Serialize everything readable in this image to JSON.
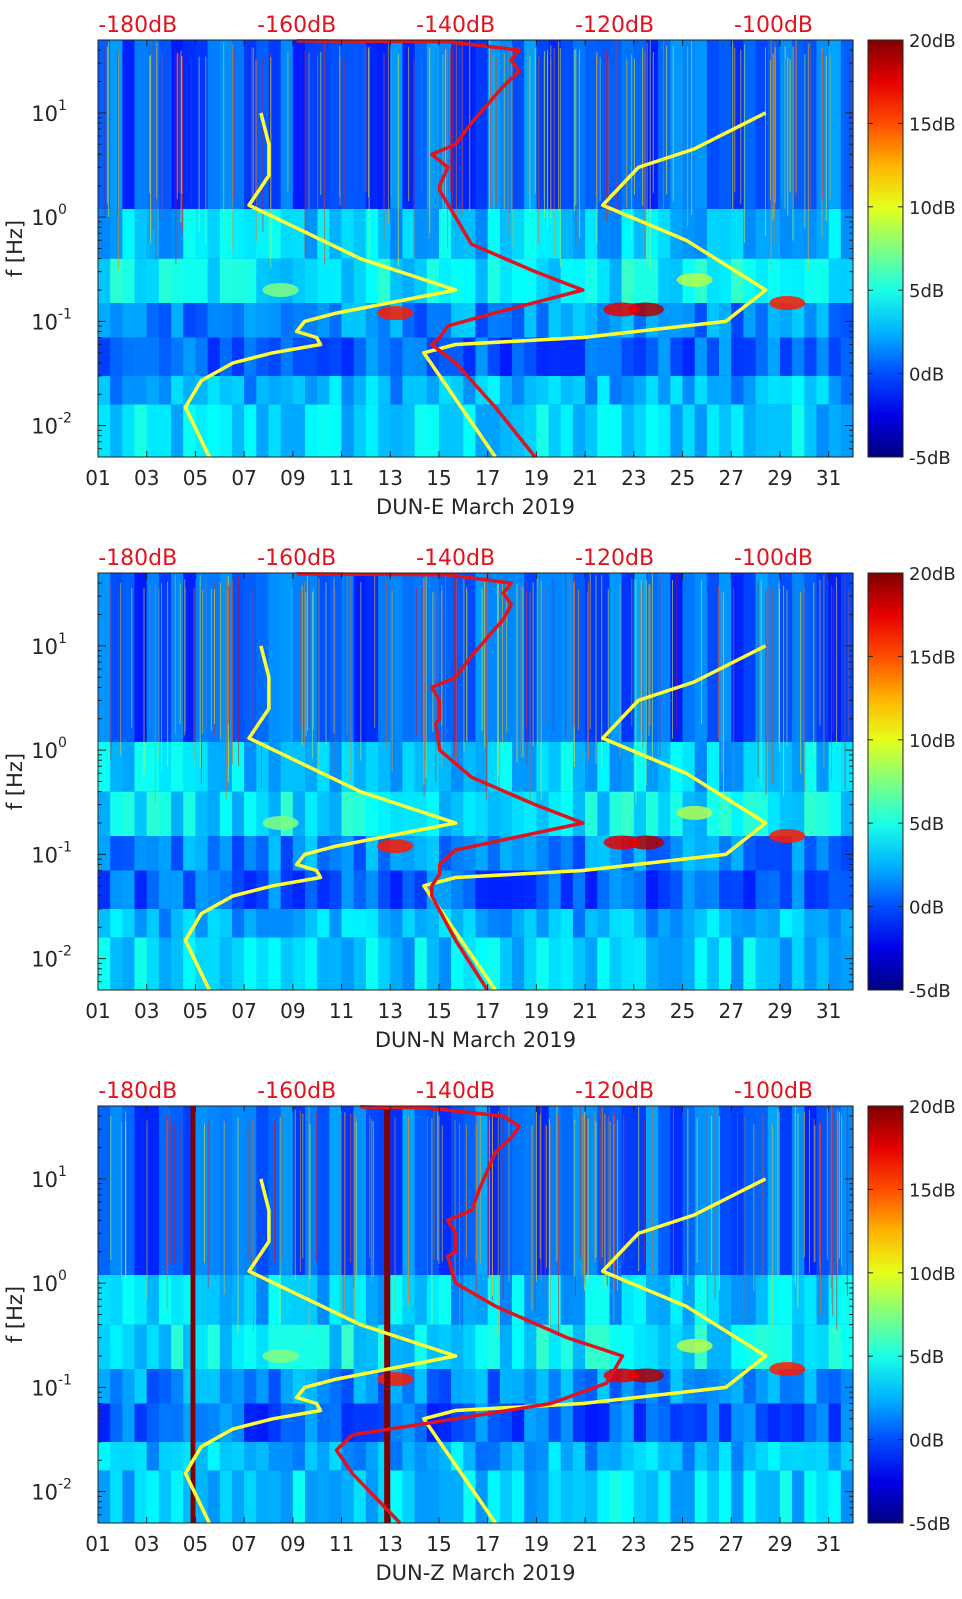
{
  "chart_data": [
    {
      "type": "heatmap",
      "title": "",
      "xlabel": "DUN-E March 2019",
      "ylabel": "f [Hz]",
      "x_ticks": [
        "01",
        "03",
        "05",
        "07",
        "09",
        "11",
        "13",
        "15",
        "17",
        "19",
        "21",
        "23",
        "25",
        "27",
        "29",
        "31"
      ],
      "y_ticks": [
        "10-2",
        "10-1",
        "10^0",
        "10^1"
      ],
      "y_scale": "log",
      "ylim": [
        0.005,
        50
      ],
      "xlim": [
        1,
        32
      ],
      "top_axis_ticks": [
        "-180dB",
        "-160dB",
        "-140dB",
        "-120dB",
        "-100dB"
      ],
      "top_axis_range_db": [
        -185,
        -90
      ],
      "colorbar": {
        "range": [
          -5,
          20
        ],
        "ticks": [
          "20dB",
          "15dB",
          "10dB",
          "5dB",
          "0dB",
          "-5dB"
        ]
      },
      "series": [
        {
          "color": "#ffff33",
          "points": [
            [
              -171,
              0.005
            ],
            [
              -174,
              0.015
            ],
            [
              -172,
              0.027
            ],
            [
              -168,
              0.04
            ],
            [
              -163,
              0.05
            ],
            [
              -157,
              0.06
            ],
            [
              -157.5,
              0.07
            ],
            [
              -160,
              0.08
            ],
            [
              -159,
              0.1
            ],
            [
              -155,
              0.12
            ],
            [
              -140,
              0.2
            ],
            [
              -152,
              0.4
            ],
            [
              -166,
              1.3
            ],
            [
              -163.5,
              2.5
            ],
            [
              -163.5,
              5
            ],
            [
              -164.5,
              10
            ]
          ]
        },
        {
          "color": "#ffff33",
          "points": [
            [
              -135,
              0.005
            ],
            [
              -144,
              0.05
            ],
            [
              -140,
              0.06
            ],
            [
              -124,
              0.07
            ],
            [
              -106,
              0.1
            ],
            [
              -101,
              0.2
            ],
            [
              -111,
              0.6
            ],
            [
              -121.5,
              1.3
            ],
            [
              -117,
              3
            ],
            [
              -110,
              4.5
            ],
            [
              -101,
              10
            ]
          ]
        },
        {
          "color": "#e0141e",
          "points": [
            [
              -130,
              0.005
            ],
            [
              -135,
              0.015
            ],
            [
              -140,
              0.04
            ],
            [
              -143,
              0.06
            ],
            [
              -142,
              0.07
            ],
            [
              -141,
              0.09
            ],
            [
              -137,
              0.11
            ],
            [
              -124,
              0.2
            ],
            [
              -130,
              0.3
            ],
            [
              -138,
              0.55
            ],
            [
              -140,
              1.0
            ],
            [
              -142,
              1.8
            ],
            [
              -142,
              2.0
            ],
            [
              -141,
              3.0
            ],
            [
              -143,
              4.0
            ],
            [
              -140,
              5.0
            ],
            [
              -138,
              8.0
            ],
            [
              -136,
              12.0
            ],
            [
              -134,
              18.0
            ],
            [
              -132,
              25.0
            ],
            [
              -133,
              32.0
            ],
            [
              -132,
              40.0
            ],
            [
              -141,
              48.0
            ],
            [
              -160,
              49.0
            ]
          ]
        }
      ],
      "vertical_bands": []
    },
    {
      "type": "heatmap",
      "title": "",
      "xlabel": "DUN-N March 2019",
      "ylabel": "f [Hz]",
      "x_ticks": [
        "01",
        "03",
        "05",
        "07",
        "09",
        "11",
        "13",
        "15",
        "17",
        "19",
        "21",
        "23",
        "25",
        "27",
        "29",
        "31"
      ],
      "y_ticks": [
        "10-2",
        "10-1",
        "10^0",
        "10^1"
      ],
      "y_scale": "log",
      "ylim": [
        0.005,
        50
      ],
      "xlim": [
        1,
        32
      ],
      "top_axis_ticks": [
        "-180dB",
        "-160dB",
        "-140dB",
        "-120dB",
        "-100dB"
      ],
      "top_axis_range_db": [
        -185,
        -90
      ],
      "colorbar": {
        "range": [
          -5,
          20
        ],
        "ticks": [
          "20dB",
          "15dB",
          "10dB",
          "5dB",
          "0dB",
          "-5dB"
        ]
      },
      "series": [
        {
          "color": "#ffff33",
          "points": [
            [
              -171,
              0.005
            ],
            [
              -174,
              0.015
            ],
            [
              -172,
              0.027
            ],
            [
              -168,
              0.04
            ],
            [
              -163,
              0.05
            ],
            [
              -157,
              0.06
            ],
            [
              -157.5,
              0.07
            ],
            [
              -160,
              0.08
            ],
            [
              -159,
              0.1
            ],
            [
              -155,
              0.12
            ],
            [
              -140,
              0.2
            ],
            [
              -152,
              0.4
            ],
            [
              -166,
              1.3
            ],
            [
              -163.5,
              2.5
            ],
            [
              -163.5,
              5
            ],
            [
              -164.5,
              10
            ]
          ]
        },
        {
          "color": "#ffff33",
          "points": [
            [
              -135,
              0.005
            ],
            [
              -144,
              0.05
            ],
            [
              -140,
              0.06
            ],
            [
              -124,
              0.07
            ],
            [
              -106,
              0.1
            ],
            [
              -101,
              0.2
            ],
            [
              -111,
              0.6
            ],
            [
              -121.5,
              1.3
            ],
            [
              -117,
              3
            ],
            [
              -110,
              4.5
            ],
            [
              -101,
              10
            ]
          ]
        },
        {
          "color": "#e0141e",
          "points": [
            [
              -136,
              0.005
            ],
            [
              -140,
              0.015
            ],
            [
              -143,
              0.04
            ],
            [
              -143,
              0.05
            ],
            [
              -142,
              0.065
            ],
            [
              -142,
              0.08
            ],
            [
              -140,
              0.11
            ],
            [
              -124,
              0.2
            ],
            [
              -130,
              0.3
            ],
            [
              -138,
              0.55
            ],
            [
              -142,
              1.0
            ],
            [
              -142.5,
              1.8
            ],
            [
              -142,
              2.0
            ],
            [
              -142,
              3.0
            ],
            [
              -143,
              4.0
            ],
            [
              -140,
              5.0
            ],
            [
              -138,
              8.0
            ],
            [
              -136,
              12.0
            ],
            [
              -134,
              18.0
            ],
            [
              -133,
              25.0
            ],
            [
              -134,
              32.0
            ],
            [
              -133,
              40.0
            ],
            [
              -141,
              48.0
            ],
            [
              -160,
              49.0
            ]
          ]
        }
      ],
      "vertical_bands": []
    },
    {
      "type": "heatmap",
      "title": "",
      "xlabel": "DUN-Z March 2019",
      "ylabel": "f [Hz]",
      "x_ticks": [
        "01",
        "03",
        "05",
        "07",
        "09",
        "11",
        "13",
        "15",
        "17",
        "19",
        "21",
        "23",
        "25",
        "27",
        "29",
        "31"
      ],
      "y_ticks": [
        "10-2",
        "10-1",
        "10^0",
        "10^1"
      ],
      "y_scale": "log",
      "ylim": [
        0.005,
        50
      ],
      "xlim": [
        1,
        32
      ],
      "top_axis_ticks": [
        "-180dB",
        "-160dB",
        "-140dB",
        "-120dB",
        "-100dB"
      ],
      "top_axis_range_db": [
        -185,
        -90
      ],
      "colorbar": {
        "range": [
          -5,
          20
        ],
        "ticks": [
          "20dB",
          "15dB",
          "10dB",
          "5dB",
          "0dB",
          "-5dB"
        ]
      },
      "series": [
        {
          "color": "#ffff33",
          "points": [
            [
              -171,
              0.005
            ],
            [
              -174,
              0.015
            ],
            [
              -172,
              0.027
            ],
            [
              -168,
              0.04
            ],
            [
              -163,
              0.05
            ],
            [
              -157,
              0.06
            ],
            [
              -157.5,
              0.07
            ],
            [
              -160,
              0.08
            ],
            [
              -159,
              0.1
            ],
            [
              -155,
              0.12
            ],
            [
              -140,
              0.2
            ],
            [
              -152,
              0.4
            ],
            [
              -166,
              1.3
            ],
            [
              -163.5,
              2.5
            ],
            [
              -163.5,
              5
            ],
            [
              -164.5,
              10
            ]
          ]
        },
        {
          "color": "#ffff33",
          "points": [
            [
              -135,
              0.005
            ],
            [
              -144,
              0.05
            ],
            [
              -140,
              0.06
            ],
            [
              -124,
              0.07
            ],
            [
              -106,
              0.1
            ],
            [
              -101,
              0.2
            ],
            [
              -111,
              0.6
            ],
            [
              -121.5,
              1.3
            ],
            [
              -117,
              3
            ],
            [
              -110,
              4.5
            ],
            [
              -101,
              10
            ]
          ]
        },
        {
          "color": "#e0141e",
          "points": [
            [
              -147,
              0.005
            ],
            [
              -153,
              0.015
            ],
            [
              -155,
              0.025
            ],
            [
              -153,
              0.035
            ],
            [
              -140,
              0.05
            ],
            [
              -128,
              0.07
            ],
            [
              -121,
              0.11
            ],
            [
              -119,
              0.2
            ],
            [
              -126,
              0.3
            ],
            [
              -135,
              0.6
            ],
            [
              -140,
              1.0
            ],
            [
              -141,
              1.8
            ],
            [
              -140,
              2.0
            ],
            [
              -140,
              3.0
            ],
            [
              -141,
              4.0
            ],
            [
              -138,
              5.0
            ],
            [
              -137,
              8.0
            ],
            [
              -136,
              12.0
            ],
            [
              -135,
              18.0
            ],
            [
              -133,
              25.0
            ],
            [
              -132,
              32.0
            ],
            [
              -134,
              40.0
            ],
            [
              -144,
              48.0
            ],
            [
              -152,
              49.0
            ]
          ]
        }
      ],
      "vertical_bands": [
        {
          "from_day": 4.8,
          "to_day": 5.0,
          "color": "#800000"
        },
        {
          "from_day": 12.75,
          "to_day": 13.0,
          "color": "#800000"
        }
      ]
    }
  ]
}
